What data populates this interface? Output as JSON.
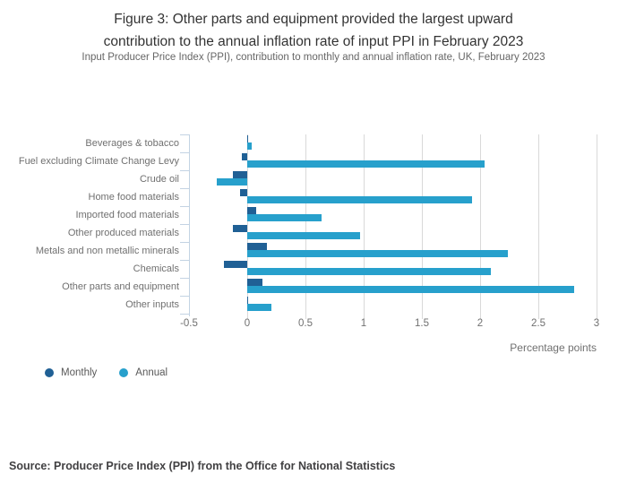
{
  "title_lines": [
    "Figure 3: Other parts and equipment provided the largest upward",
    "contribution to the annual inflation rate of input PPI in February 2023"
  ],
  "subtitle": "Input Producer Price Index (PPI), contribution to monthly and annual inflation rate, UK, February 2023",
  "source": "Source: Producer Price Index (PPI) from the Office for National Statistics",
  "legend": {
    "monthly_label": "Monthly",
    "annual_label": "Annual"
  },
  "colors": {
    "monthly": "#206095",
    "annual": "#27a0cc",
    "grid": "#d9d9d9",
    "axis": "#c3d3e3",
    "label_text": "#707070",
    "title_text": "#333333",
    "source_text": "#414042"
  },
  "chart_data": {
    "type": "bar",
    "orientation": "horizontal",
    "title": "Figure 3: Other parts and equipment provided the largest upward contribution to the annual inflation rate of input PPI in February 2023",
    "subtitle": "Input Producer Price Index (PPI), contribution to monthly and annual inflation rate, UK, February 2023",
    "categories": [
      "Beverages & tobacco",
      "Fuel excluding Climate Change Levy",
      "Crude oil",
      "Home food materials",
      "Imported food materials",
      "Other produced materials",
      "Metals and non metallic minerals",
      "Chemicals",
      "Other parts and equipment",
      "Other inputs"
    ],
    "series": [
      {
        "name": "Monthly",
        "values": [
          0.01,
          -0.05,
          -0.12,
          -0.06,
          0.08,
          -0.12,
          0.17,
          -0.2,
          0.13,
          0.01
        ]
      },
      {
        "name": "Annual",
        "values": [
          0.04,
          2.04,
          -0.26,
          1.93,
          0.64,
          0.97,
          2.24,
          2.09,
          2.81,
          0.21
        ]
      }
    ],
    "xlabel": "Percentage points",
    "ylabel": "",
    "xlim": [
      -0.5,
      3
    ],
    "xticks": [
      -0.5,
      0,
      0.5,
      1,
      1.5,
      2,
      2.5,
      3
    ],
    "xtick_labels": [
      "-0.5",
      "0",
      "0.5",
      "1",
      "1.5",
      "2",
      "2.5",
      "3"
    ],
    "grid": true,
    "legend_position": "bottom-left"
  }
}
